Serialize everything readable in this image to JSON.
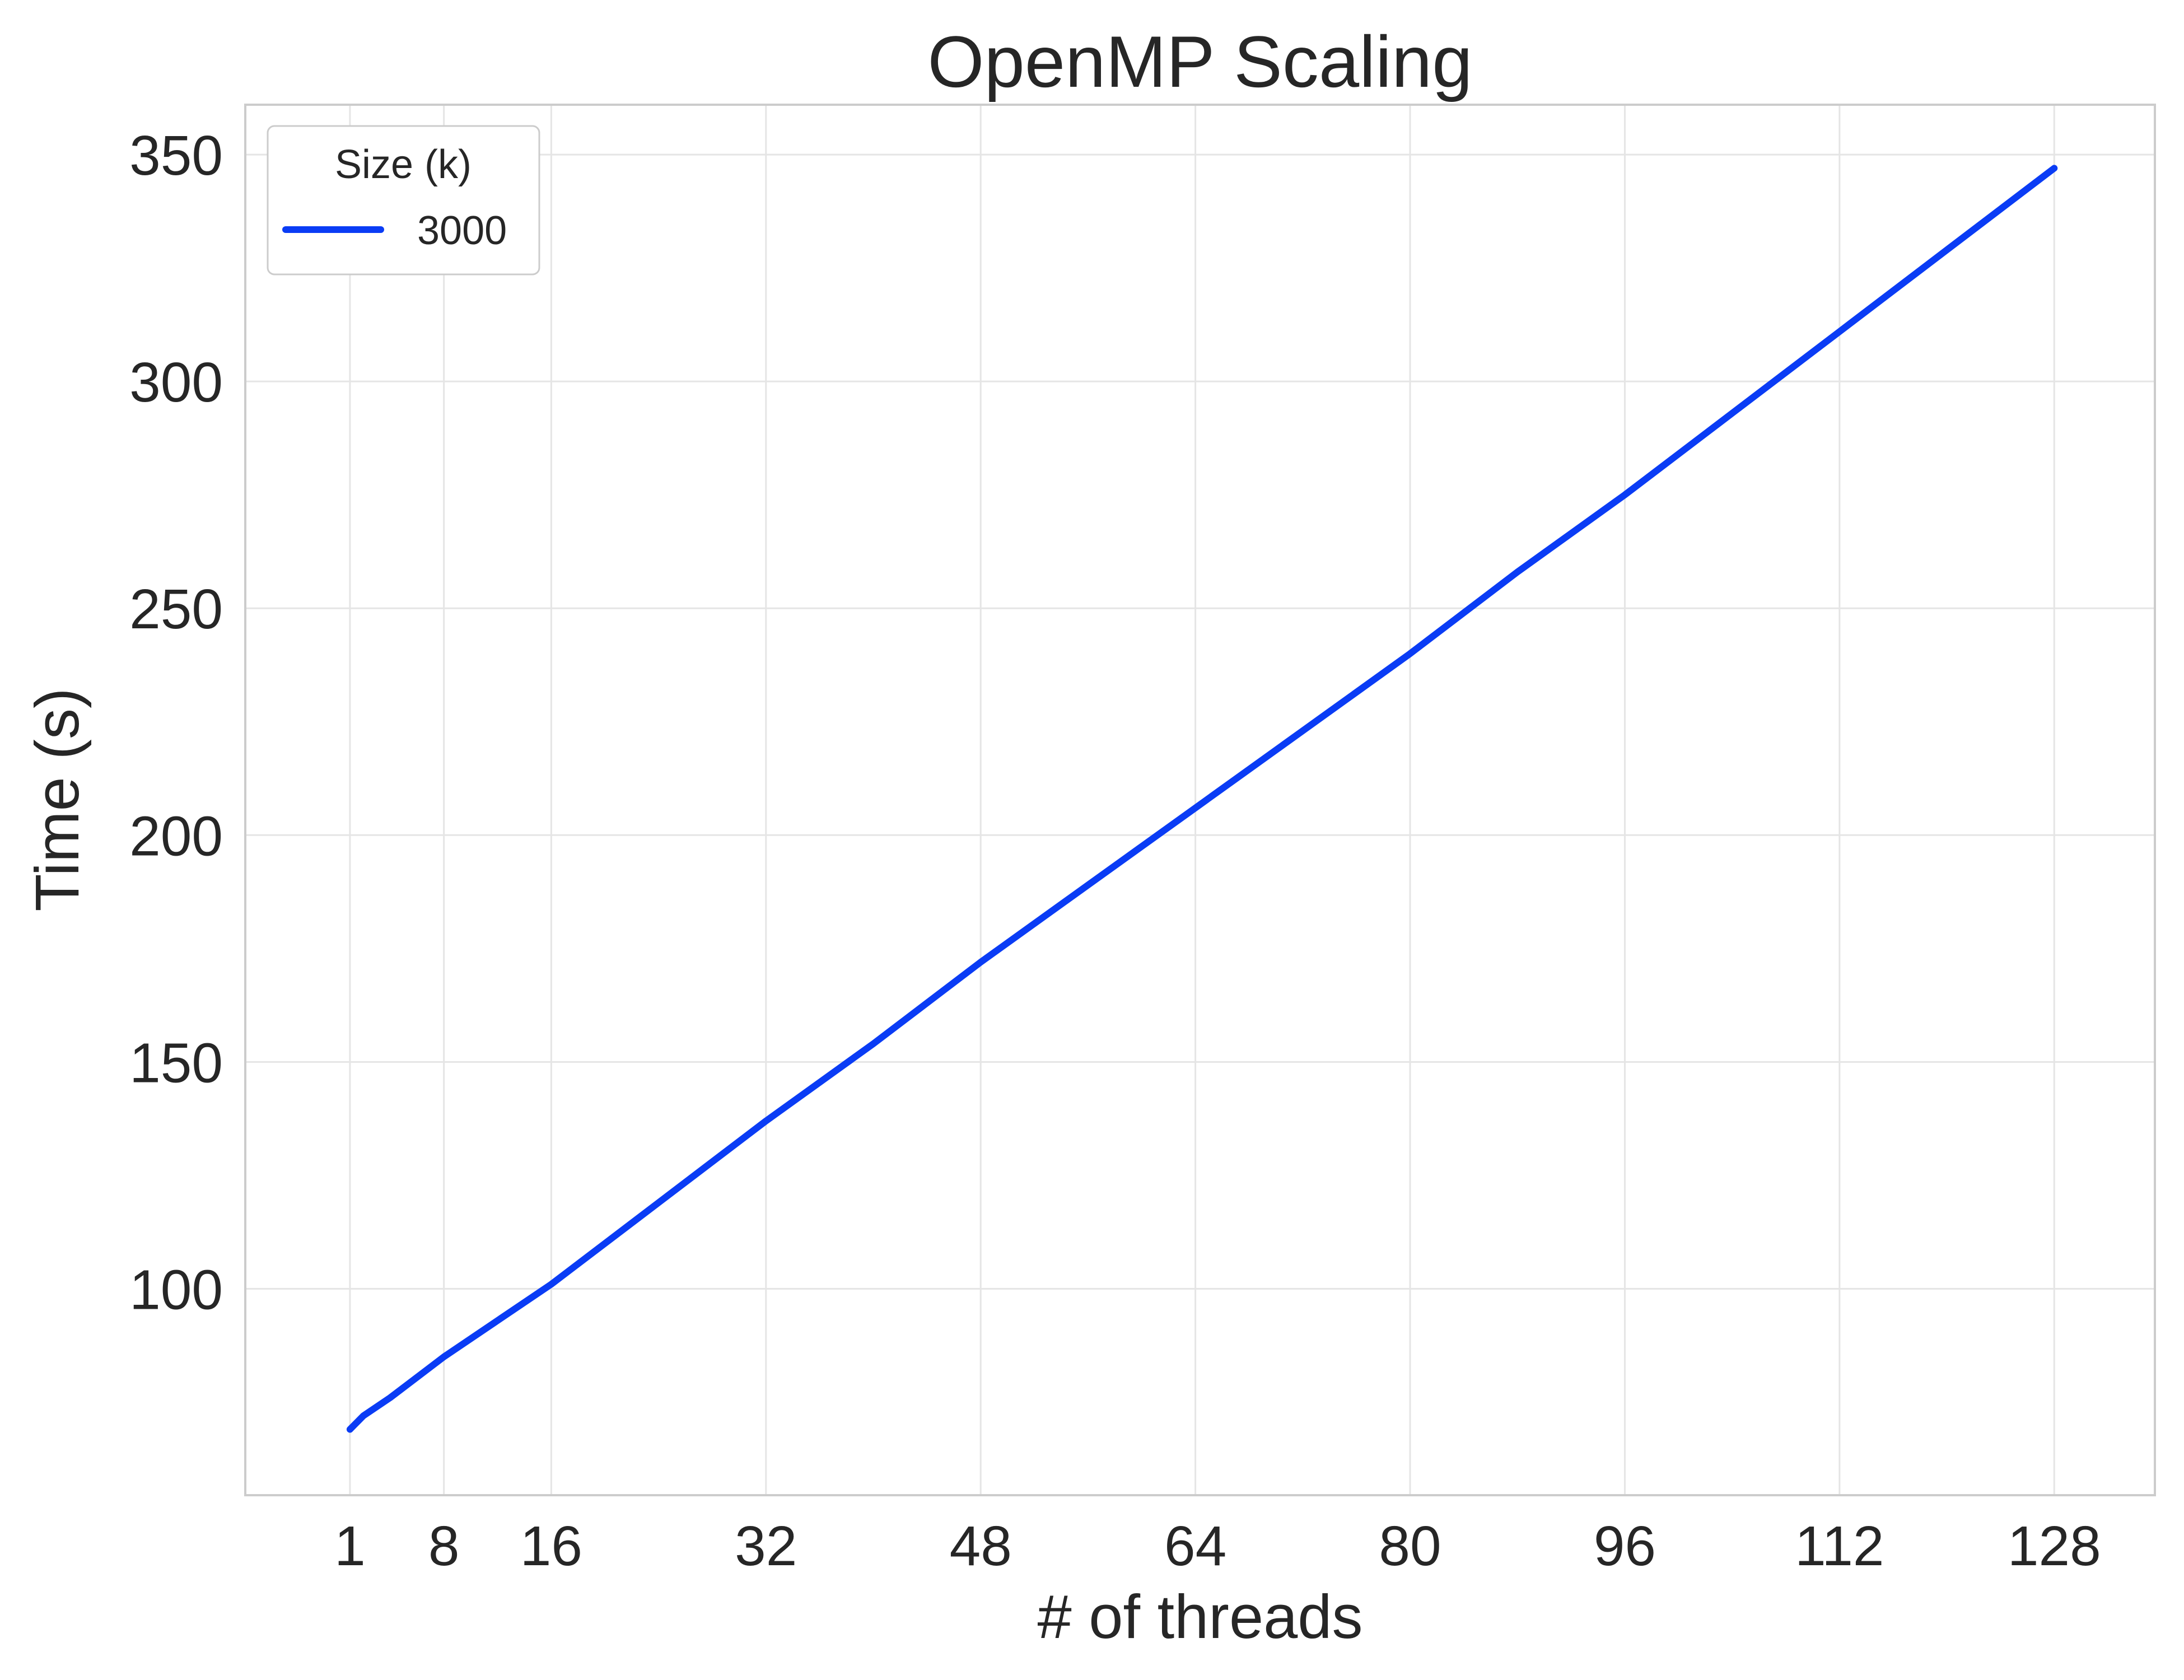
{
  "chart_data": {
    "type": "line",
    "title": "OpenMP Scaling",
    "xlabel": "# of threads",
    "ylabel": "Time (s)",
    "xlim": [
      -6.8,
      135.5
    ],
    "ylim": [
      54.5,
      361.0
    ],
    "xticks": [
      1,
      8,
      16,
      32,
      48,
      64,
      80,
      96,
      112,
      128
    ],
    "yticks": [
      100,
      150,
      200,
      250,
      300,
      350
    ],
    "grid": true,
    "legend": {
      "title": "Size (k)",
      "position": "top-left"
    },
    "series": [
      {
        "name": "3000",
        "color": "#0a3cf5",
        "x": [
          1,
          2,
          4,
          8,
          16,
          24,
          32,
          40,
          48,
          56,
          64,
          72,
          80,
          88,
          96,
          104,
          112,
          120,
          128
        ],
        "y": [
          69,
          72,
          76,
          85,
          101,
          119,
          137,
          154,
          172,
          189,
          206,
          223,
          240,
          258,
          275,
          293,
          311,
          329,
          347
        ]
      }
    ]
  }
}
